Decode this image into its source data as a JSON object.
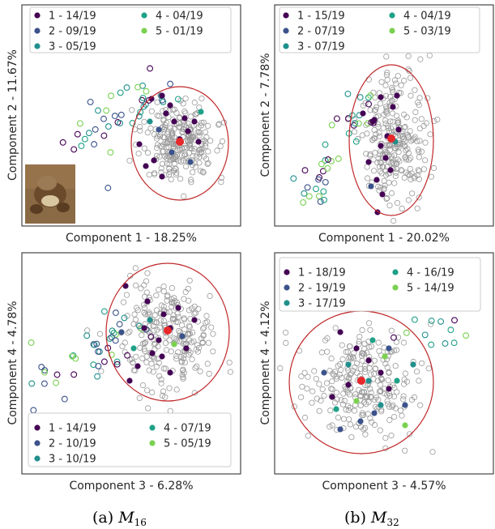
{
  "colors": {
    "c1": "#440154",
    "c2": "#3b528b",
    "c3": "#21908d",
    "c4": "#1fa187",
    "c5": "#7ad151",
    "bg": "#9a9a9a",
    "ellipse": "#c0282a",
    "center": "#e8282a",
    "frame": "#222222"
  },
  "captions": {
    "a": {
      "prefix": "(a) ",
      "symbol": "M",
      "sub": "16"
    },
    "b": {
      "prefix": "(b) ",
      "symbol": "M",
      "sub": "32"
    }
  },
  "chart_data": [
    {
      "type": "scatter",
      "xlabel": "Component 1 - 18.25%",
      "ylabel": "Component 2 - 11.67%",
      "legend_position": "top",
      "legend": [
        "1 - 14/19",
        "2 - 09/19",
        "3 - 05/19",
        "4 - 04/19",
        "5 - 01/19"
      ],
      "has_thumbnail": true
    },
    {
      "type": "scatter",
      "xlabel": "Component 1 - 20.02%",
      "ylabel": "Component 2 - 7.78%",
      "legend_position": "top",
      "legend": [
        "1 - 15/19",
        "2 - 07/19",
        "3 - 07/19",
        "4 - 04/19",
        "5 - 03/19"
      ]
    },
    {
      "type": "scatter",
      "xlabel": "Component 3 - 6.28%",
      "ylabel": "Component 4 - 4.78%",
      "legend_position": "bottom",
      "legend": [
        "1 - 14/19",
        "2 - 10/19",
        "3 - 10/19",
        "4 - 07/19",
        "5 - 05/19"
      ]
    },
    {
      "type": "scatter",
      "xlabel": "Component 3 - 4.57%",
      "ylabel": "Component 4 - 4.12%",
      "legend_position": "top",
      "legend": [
        "1 - 18/19",
        "2 - 19/19",
        "3 - 17/19",
        "4 - 16/19",
        "5 - 14/19"
      ]
    }
  ]
}
